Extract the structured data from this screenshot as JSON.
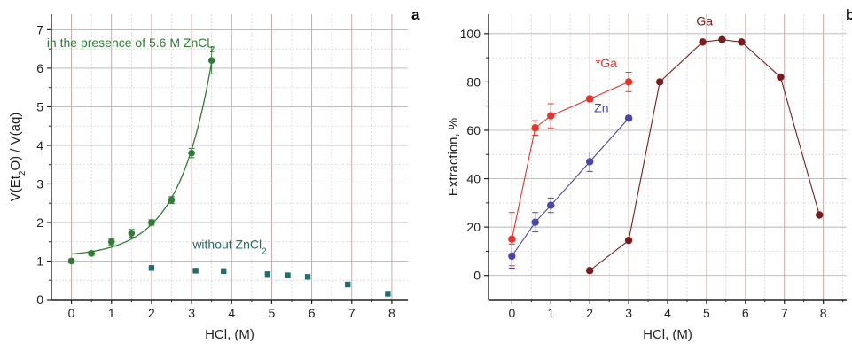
{
  "chart_data": [
    {
      "type": "scatter",
      "panel_label": "a",
      "xlabel": "HCl, (M)",
      "ylabel": "V(Et2O) / V(aq)",
      "ylabel_parts": {
        "pre": "V(Et",
        "sub": "2",
        "post": "O) / V(aq)"
      },
      "xlim": [
        -0.5,
        8.4
      ],
      "ylim": [
        0,
        7.4
      ],
      "xticks": [
        0,
        1,
        2,
        3,
        4,
        5,
        6,
        7,
        8
      ],
      "yticks": [
        0,
        1,
        2,
        3,
        4,
        5,
        6,
        7
      ],
      "grid": true,
      "series": [
        {
          "name": "in the presence of 5.6 M ZnCl2",
          "label_parts": {
            "main": "in the presence of 5.6 M ZnCl",
            "sub": "2"
          },
          "color": "#2e7d32",
          "marker": "circle",
          "fit_curve": true,
          "points": [
            {
              "x": 0,
              "y": 1.0,
              "err": 0.05
            },
            {
              "x": 0.5,
              "y": 1.2,
              "err": 0.05
            },
            {
              "x": 1.0,
              "y": 1.5,
              "err": 0.08
            },
            {
              "x": 1.5,
              "y": 1.72,
              "err": 0.1
            },
            {
              "x": 2.0,
              "y": 2.0,
              "err": 0.07
            },
            {
              "x": 2.5,
              "y": 2.58,
              "err": 0.09
            },
            {
              "x": 3.0,
              "y": 3.8,
              "err": 0.12
            },
            {
              "x": 3.5,
              "y": 6.2,
              "err": 0.35
            }
          ]
        },
        {
          "name": "without ZnCl2",
          "label_parts": {
            "main": "without ZnCl",
            "sub": "2"
          },
          "color": "#1f6f6a",
          "marker": "square",
          "fit_curve": false,
          "points": [
            {
              "x": 2.0,
              "y": 0.82
            },
            {
              "x": 3.1,
              "y": 0.75
            },
            {
              "x": 3.8,
              "y": 0.74
            },
            {
              "x": 4.9,
              "y": 0.66
            },
            {
              "x": 5.4,
              "y": 0.63
            },
            {
              "x": 5.9,
              "y": 0.59
            },
            {
              "x": 6.9,
              "y": 0.39
            },
            {
              "x": 7.9,
              "y": 0.15
            }
          ]
        }
      ]
    },
    {
      "type": "line",
      "panel_label": "b",
      "xlabel": "HCl, (M)",
      "ylabel": "Extraction, %",
      "xlim": [
        -0.6,
        8.6
      ],
      "ylim": [
        -10,
        108
      ],
      "xticks": [
        0,
        1,
        2,
        3,
        4,
        5,
        6,
        7,
        8
      ],
      "yticks": [
        0,
        20,
        40,
        60,
        80,
        100
      ],
      "grid": true,
      "series": [
        {
          "name": "*Ga",
          "color": "#e8332a",
          "points": [
            {
              "x": 0,
              "y": 15,
              "err": 11
            },
            {
              "x": 0.6,
              "y": 61,
              "err": 3
            },
            {
              "x": 1.0,
              "y": 66,
              "err": 5
            },
            {
              "x": 2.0,
              "y": 73,
              "err": 1
            },
            {
              "x": 3.0,
              "y": 80,
              "err": 4
            }
          ]
        },
        {
          "name": "Zn",
          "color": "#4a45a8",
          "points": [
            {
              "x": 0,
              "y": 8,
              "err": 5
            },
            {
              "x": 0.6,
              "y": 22,
              "err": 4
            },
            {
              "x": 1.0,
              "y": 29,
              "err": 3
            },
            {
              "x": 2.0,
              "y": 47,
              "err": 4
            },
            {
              "x": 3.0,
              "y": 65,
              "err": 1
            }
          ]
        },
        {
          "name": "Ga",
          "color": "#7a1c1c",
          "points": [
            {
              "x": 2.0,
              "y": 2
            },
            {
              "x": 3.0,
              "y": 14.5
            },
            {
              "x": 3.8,
              "y": 80
            },
            {
              "x": 4.9,
              "y": 96.5
            },
            {
              "x": 5.4,
              "y": 97.5
            },
            {
              "x": 5.9,
              "y": 96.5
            },
            {
              "x": 6.9,
              "y": 82
            },
            {
              "x": 7.9,
              "y": 25
            }
          ]
        }
      ]
    }
  ]
}
